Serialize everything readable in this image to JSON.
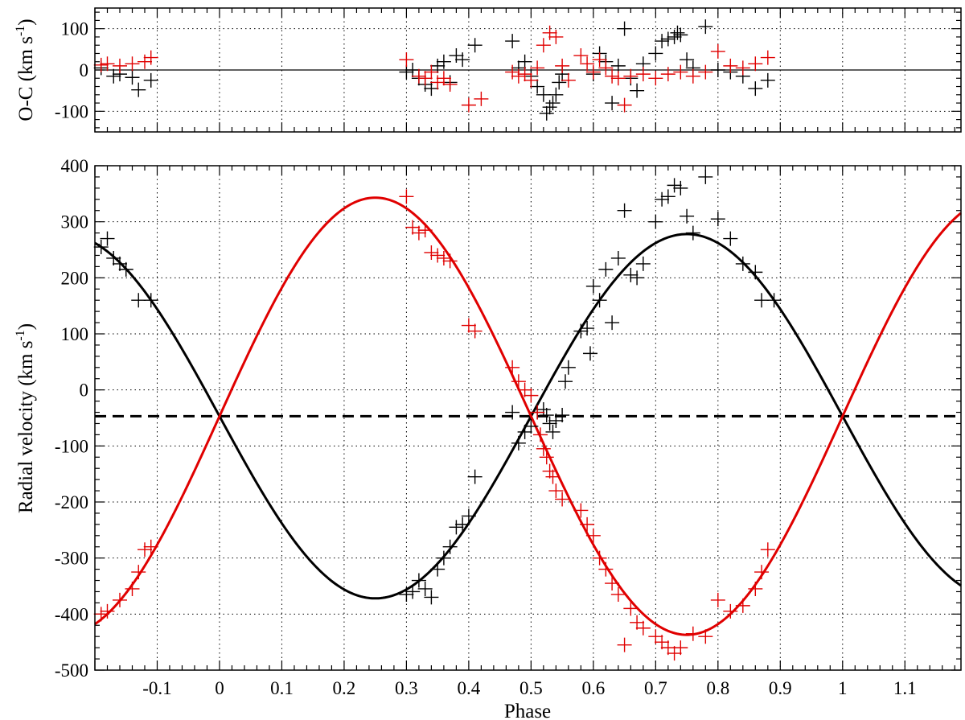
{
  "chart_data": [
    {
      "panel": "residuals",
      "type": "scatter",
      "title": "",
      "xlabel": "",
      "ylabel": {
        "main": "O-C (km s",
        "sup": "-1",
        "close": ")"
      },
      "xlim": [
        -0.2,
        1.19
      ],
      "ylim": [
        -150,
        150
      ],
      "xticks": [
        -0.1,
        0,
        0.1,
        0.2,
        0.3,
        0.4,
        0.5,
        0.6,
        0.7,
        0.8,
        0.9,
        1,
        1.1
      ],
      "yticks": [
        -100,
        0,
        100
      ],
      "ytick_labels": [
        "-100",
        "0",
        "100"
      ],
      "grid": true,
      "reference_line": 0,
      "series": [
        {
          "color": "#000000",
          "marker": "plus",
          "points": [
            [
              -0.19,
              5
            ],
            [
              -0.17,
              -15
            ],
            [
              -0.16,
              -10
            ],
            [
              -0.14,
              -18
            ],
            [
              -0.13,
              -48
            ],
            [
              -0.11,
              -25
            ],
            [
              0.3,
              -5
            ],
            [
              0.31,
              0
            ],
            [
              0.32,
              -20
            ],
            [
              0.33,
              -35
            ],
            [
              0.34,
              -45
            ],
            [
              0.35,
              10
            ],
            [
              0.36,
              20
            ],
            [
              0.37,
              -30
            ],
            [
              0.38,
              35
            ],
            [
              0.39,
              25
            ],
            [
              0.41,
              60
            ],
            [
              0.47,
              70
            ],
            [
              0.48,
              5
            ],
            [
              0.49,
              20
            ],
            [
              0.5,
              -15
            ],
            [
              0.51,
              -40
            ],
            [
              0.52,
              -60
            ],
            [
              0.525,
              -105
            ],
            [
              0.53,
              -90
            ],
            [
              0.535,
              -80
            ],
            [
              0.54,
              -60
            ],
            [
              0.545,
              -30
            ],
            [
              0.55,
              -10
            ],
            [
              0.6,
              -10
            ],
            [
              0.61,
              40
            ],
            [
              0.62,
              20
            ],
            [
              0.63,
              -80
            ],
            [
              0.64,
              10
            ],
            [
              0.65,
              100
            ],
            [
              0.66,
              -20
            ],
            [
              0.67,
              -50
            ],
            [
              0.68,
              15
            ],
            [
              0.7,
              40
            ],
            [
              0.71,
              70
            ],
            [
              0.72,
              75
            ],
            [
              0.73,
              80
            ],
            [
              0.735,
              90
            ],
            [
              0.74,
              85
            ],
            [
              0.75,
              25
            ],
            [
              0.76,
              5
            ],
            [
              0.78,
              105
            ],
            [
              0.8,
              0
            ],
            [
              0.82,
              -5
            ],
            [
              0.84,
              -15
            ],
            [
              0.86,
              -45
            ],
            [
              0.88,
              -25
            ]
          ]
        },
        {
          "color": "#e00000",
          "marker": "plus",
          "points": [
            [
              -0.19,
              12
            ],
            [
              -0.18,
              15
            ],
            [
              -0.16,
              10
            ],
            [
              -0.14,
              15
            ],
            [
              -0.12,
              20
            ],
            [
              -0.11,
              30
            ],
            [
              0.3,
              25
            ],
            [
              0.32,
              -15
            ],
            [
              0.33,
              -20
            ],
            [
              0.34,
              -5
            ],
            [
              0.35,
              -30
            ],
            [
              0.36,
              -20
            ],
            [
              0.37,
              -35
            ],
            [
              0.4,
              -85
            ],
            [
              0.42,
              -70
            ],
            [
              0.47,
              -5
            ],
            [
              0.48,
              -15
            ],
            [
              0.49,
              -10
            ],
            [
              0.5,
              -25
            ],
            [
              0.51,
              5
            ],
            [
              0.52,
              60
            ],
            [
              0.53,
              90
            ],
            [
              0.54,
              80
            ],
            [
              0.55,
              10
            ],
            [
              0.56,
              -25
            ],
            [
              0.58,
              35
            ],
            [
              0.59,
              15
            ],
            [
              0.6,
              -5
            ],
            [
              0.61,
              25
            ],
            [
              0.62,
              5
            ],
            [
              0.63,
              -15
            ],
            [
              0.64,
              -20
            ],
            [
              0.65,
              -85
            ],
            [
              0.66,
              -15
            ],
            [
              0.68,
              -10
            ],
            [
              0.7,
              -20
            ],
            [
              0.72,
              -10
            ],
            [
              0.74,
              -5
            ],
            [
              0.76,
              -15
            ],
            [
              0.78,
              -5
            ],
            [
              0.8,
              45
            ],
            [
              0.82,
              10
            ],
            [
              0.84,
              5
            ],
            [
              0.86,
              15
            ],
            [
              0.88,
              30
            ]
          ]
        }
      ]
    },
    {
      "panel": "radial-velocity",
      "type": "line",
      "title": "",
      "xlabel": "Phase",
      "ylabel": {
        "main": "Radial velocity (km s",
        "sup": "-1",
        "close": ")"
      },
      "xlim": [
        -0.2,
        1.19
      ],
      "ylim": [
        -500,
        400
      ],
      "xticks": [
        -0.1,
        0,
        0.1,
        0.2,
        0.3,
        0.4,
        0.5,
        0.6,
        0.7,
        0.8,
        0.9,
        1,
        1.1
      ],
      "xtick_labels": [
        "-0.1",
        "0",
        "0.1",
        "0.2",
        "0.3",
        "0.4",
        "0.5",
        "0.6",
        "0.7",
        "0.8",
        "0.9",
        "1",
        "1.1"
      ],
      "yticks": [
        -500,
        -400,
        -300,
        -200,
        -100,
        0,
        100,
        200,
        300,
        400
      ],
      "ytick_labels": [
        "-500",
        "-400",
        "-300",
        "-200",
        "-100",
        "0",
        "100",
        "200",
        "300",
        "400"
      ],
      "grid": true,
      "systemic_velocity": -47,
      "curves": [
        {
          "color": "#000000",
          "gamma": -47,
          "K": 325,
          "sign": -1
        },
        {
          "color": "#e00000",
          "gamma": -47,
          "K": 390,
          "sign": 1
        }
      ],
      "series": [
        {
          "color": "#000000",
          "marker": "plus",
          "points": [
            [
              -0.19,
              255
            ],
            [
              -0.18,
              270
            ],
            [
              -0.17,
              235
            ],
            [
              -0.16,
              225
            ],
            [
              -0.15,
              215
            ],
            [
              -0.13,
              160
            ],
            [
              -0.11,
              160
            ],
            [
              0.3,
              -365
            ],
            [
              0.31,
              -360
            ],
            [
              0.32,
              -340
            ],
            [
              0.33,
              -355
            ],
            [
              0.34,
              -370
            ],
            [
              0.35,
              -320
            ],
            [
              0.36,
              -300
            ],
            [
              0.37,
              -280
            ],
            [
              0.38,
              -245
            ],
            [
              0.39,
              -240
            ],
            [
              0.4,
              -225
            ],
            [
              0.41,
              -155
            ],
            [
              0.47,
              -40
            ],
            [
              0.48,
              -95
            ],
            [
              0.49,
              -75
            ],
            [
              0.5,
              -65
            ],
            [
              0.51,
              -40
            ],
            [
              0.52,
              -35
            ],
            [
              0.525,
              -45
            ],
            [
              0.53,
              -60
            ],
            [
              0.535,
              -75
            ],
            [
              0.54,
              -55
            ],
            [
              0.55,
              -45
            ],
            [
              0.555,
              15
            ],
            [
              0.56,
              40
            ],
            [
              0.58,
              105
            ],
            [
              0.59,
              110
            ],
            [
              0.595,
              65
            ],
            [
              0.6,
              185
            ],
            [
              0.61,
              160
            ],
            [
              0.62,
              215
            ],
            [
              0.63,
              120
            ],
            [
              0.64,
              235
            ],
            [
              0.65,
              320
            ],
            [
              0.66,
              205
            ],
            [
              0.67,
              200
            ],
            [
              0.68,
              225
            ],
            [
              0.7,
              300
            ],
            [
              0.71,
              340
            ],
            [
              0.72,
              345
            ],
            [
              0.73,
              365
            ],
            [
              0.74,
              360
            ],
            [
              0.75,
              310
            ],
            [
              0.76,
              280
            ],
            [
              0.78,
              380
            ],
            [
              0.8,
              305
            ],
            [
              0.82,
              270
            ],
            [
              0.84,
              225
            ],
            [
              0.86,
              210
            ],
            [
              0.87,
              160
            ],
            [
              0.89,
              160
            ]
          ]
        },
        {
          "color": "#e00000",
          "marker": "plus",
          "points": [
            [
              -0.19,
              -400
            ],
            [
              -0.18,
              -395
            ],
            [
              -0.16,
              -375
            ],
            [
              -0.14,
              -355
            ],
            [
              -0.13,
              -325
            ],
            [
              -0.12,
              -285
            ],
            [
              -0.11,
              -280
            ],
            [
              0.3,
              345
            ],
            [
              0.31,
              290
            ],
            [
              0.32,
              280
            ],
            [
              0.33,
              285
            ],
            [
              0.34,
              245
            ],
            [
              0.35,
              240
            ],
            [
              0.36,
              235
            ],
            [
              0.37,
              230
            ],
            [
              0.4,
              115
            ],
            [
              0.41,
              105
            ],
            [
              0.47,
              40
            ],
            [
              0.48,
              15
            ],
            [
              0.49,
              0
            ],
            [
              0.5,
              -10
            ],
            [
              0.51,
              -40
            ],
            [
              0.515,
              -80
            ],
            [
              0.52,
              -105
            ],
            [
              0.525,
              -120
            ],
            [
              0.53,
              -145
            ],
            [
              0.535,
              -155
            ],
            [
              0.54,
              -180
            ],
            [
              0.55,
              -195
            ],
            [
              0.58,
              -215
            ],
            [
              0.59,
              -240
            ],
            [
              0.6,
              -260
            ],
            [
              0.61,
              -300
            ],
            [
              0.62,
              -320
            ],
            [
              0.63,
              -345
            ],
            [
              0.64,
              -365
            ],
            [
              0.65,
              -455
            ],
            [
              0.66,
              -390
            ],
            [
              0.67,
              -415
            ],
            [
              0.68,
              -425
            ],
            [
              0.7,
              -440
            ],
            [
              0.71,
              -450
            ],
            [
              0.72,
              -460
            ],
            [
              0.73,
              -470
            ],
            [
              0.74,
              -460
            ],
            [
              0.76,
              -435
            ],
            [
              0.78,
              -440
            ],
            [
              0.8,
              -375
            ],
            [
              0.82,
              -395
            ],
            [
              0.84,
              -385
            ],
            [
              0.86,
              -355
            ],
            [
              0.87,
              -325
            ],
            [
              0.88,
              -285
            ]
          ]
        }
      ]
    }
  ]
}
